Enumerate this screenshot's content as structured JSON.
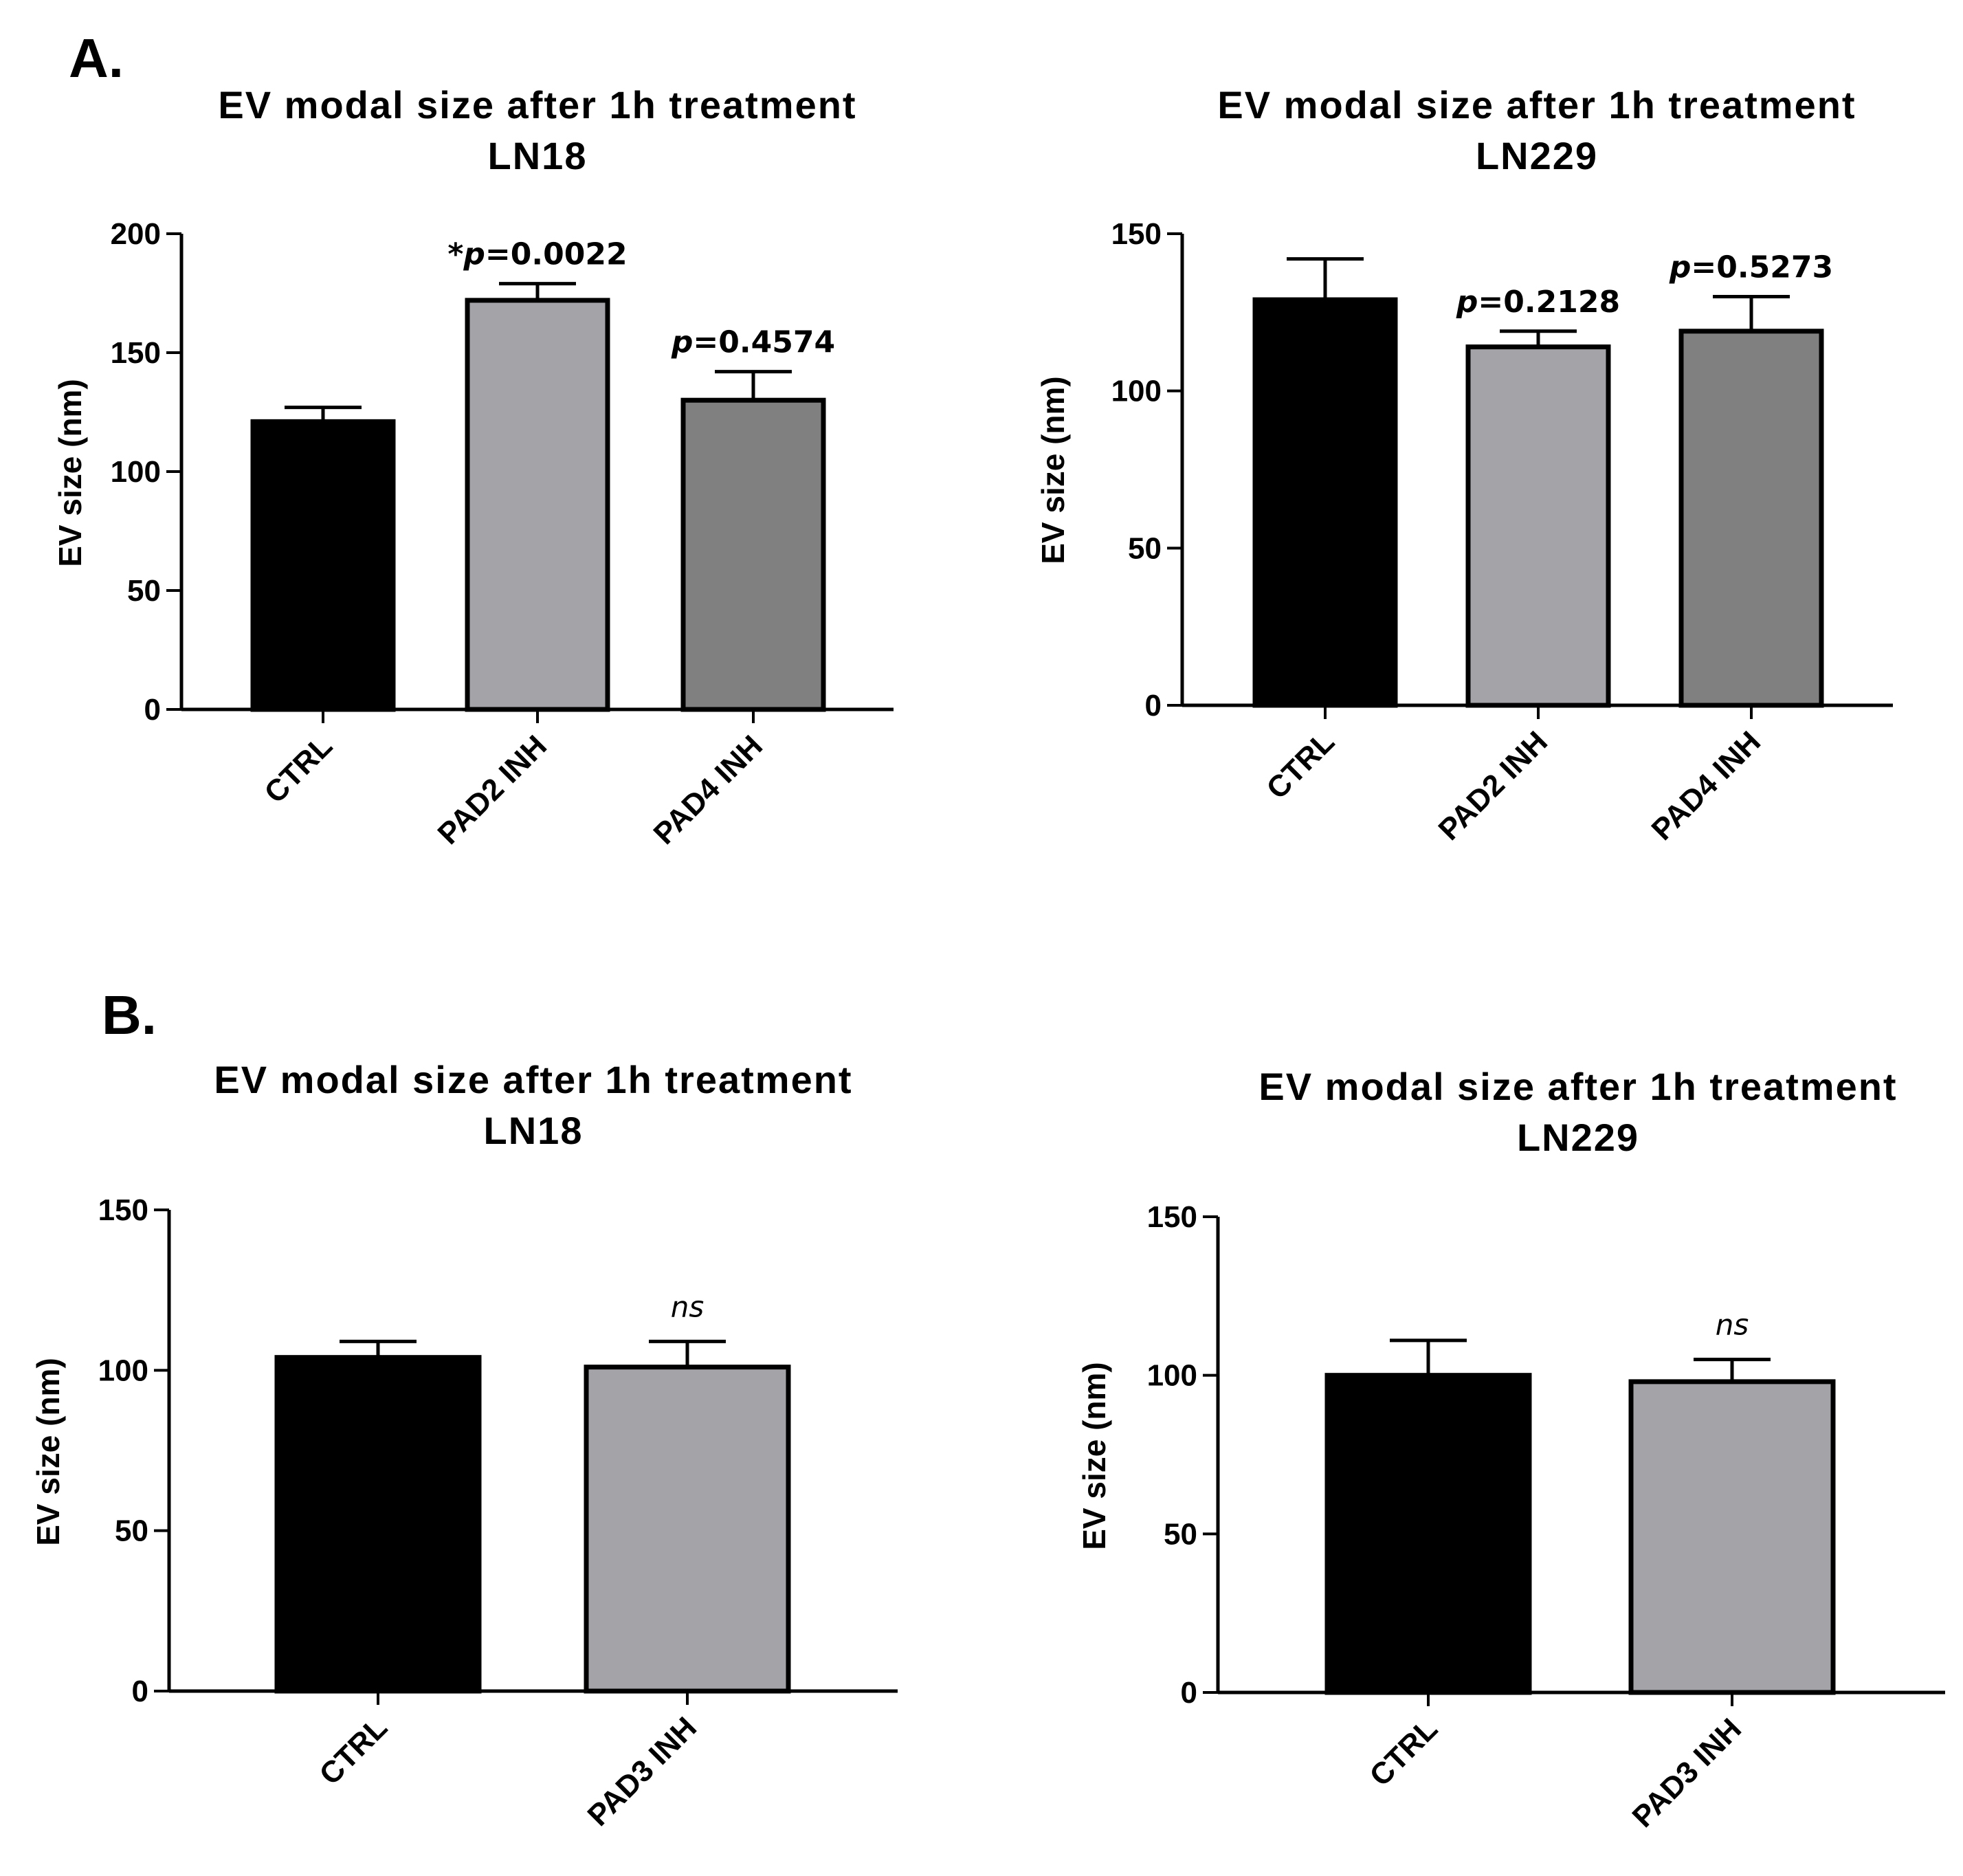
{
  "panel_labels": {
    "A": "A.",
    "B": "B."
  },
  "chart_data": [
    {
      "type": "bar",
      "panel": "A",
      "title": [
        "EV modal size after 1h treatment",
        "LN18"
      ],
      "ylabel": "EV size (nm)",
      "ylim": [
        0,
        200
      ],
      "yticks": [
        0,
        50,
        100,
        150,
        200
      ],
      "categories": [
        "CTRL",
        "PAD2 INH",
        "PAD4 INH"
      ],
      "values": [
        121,
        172,
        130
      ],
      "errors": [
        6,
        7,
        12
      ],
      "colors": [
        "#000000",
        "#a3a3a8",
        "#808080"
      ],
      "annotations": [
        {
          "category": "PAD2 INH",
          "prefix": "*",
          "p": "p",
          "text": "=0.0022"
        },
        {
          "category": "PAD4 INH",
          "prefix": "",
          "p": "p",
          "text": "=0.4574"
        }
      ]
    },
    {
      "type": "bar",
      "panel": "A",
      "title": [
        "EV modal size after 1h treatment",
        "LN229"
      ],
      "ylabel": "EV size (nm)",
      "ylim": [
        0,
        150
      ],
      "yticks": [
        0,
        50,
        100,
        150
      ],
      "categories": [
        "CTRL",
        "PAD2 INH",
        "PAD4 INH"
      ],
      "values": [
        129,
        114,
        119
      ],
      "errors": [
        13,
        5,
        11
      ],
      "colors": [
        "#000000",
        "#a3a3a8",
        "#808080"
      ],
      "annotations": [
        {
          "category": "PAD2 INH",
          "prefix": "",
          "p": "p",
          "text": "=0.2128"
        },
        {
          "category": "PAD4 INH",
          "prefix": "",
          "p": "p",
          "text": "=0.5273"
        }
      ]
    },
    {
      "type": "bar",
      "panel": "B",
      "title": [
        "EV modal size after 1h treatment",
        "LN18"
      ],
      "ylabel": "EV size (nm)",
      "ylim": [
        0,
        150
      ],
      "yticks": [
        0,
        50,
        100,
        150
      ],
      "categories": [
        "CTRL",
        "PAD3 INH"
      ],
      "values": [
        104,
        101
      ],
      "errors": [
        5,
        8
      ],
      "colors": [
        "#000000",
        "#a3a3a8"
      ],
      "annotations": [
        {
          "category": "PAD3 INH",
          "ns": "ns"
        }
      ]
    },
    {
      "type": "bar",
      "panel": "B",
      "title": [
        "EV modal size after 1h treatment",
        "LN229"
      ],
      "ylabel": "EV size (nm)",
      "ylim": [
        0,
        150
      ],
      "yticks": [
        0,
        50,
        100,
        150
      ],
      "categories": [
        "CTRL",
        "PAD3 INH"
      ],
      "values": [
        100,
        98
      ],
      "errors": [
        11,
        7
      ],
      "colors": [
        "#000000",
        "#a3a3a8"
      ],
      "annotations": [
        {
          "category": "PAD3 INH",
          "ns": "ns"
        }
      ]
    }
  ]
}
